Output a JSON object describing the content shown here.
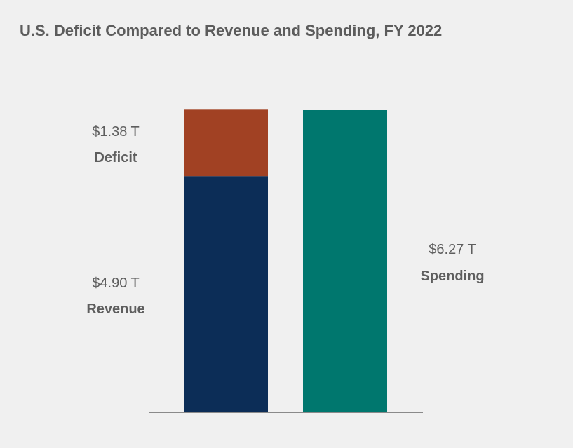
{
  "title": "U.S. Deficit Compared to Revenue and Spending, FY 2022",
  "chart_data": {
    "type": "bar",
    "stacked": true,
    "title": "U.S. Deficit Compared to Revenue and Spending, FY 2022",
    "unit": "T",
    "categories": [
      "",
      ""
    ],
    "series": [
      {
        "name": "Revenue",
        "value_label": "$4.90 T",
        "values": [
          4.9,
          null
        ],
        "color": "#0c2d57"
      },
      {
        "name": "Deficit",
        "value_label": "$1.38 T",
        "values": [
          1.38,
          null
        ],
        "color": "#a14123"
      },
      {
        "name": "Spending",
        "value_label": "$6.27 T",
        "values": [
          null,
          6.27
        ],
        "color": "#00776e"
      }
    ],
    "ylim": [
      0,
      6.27
    ],
    "grid": false,
    "legend": "none"
  }
}
